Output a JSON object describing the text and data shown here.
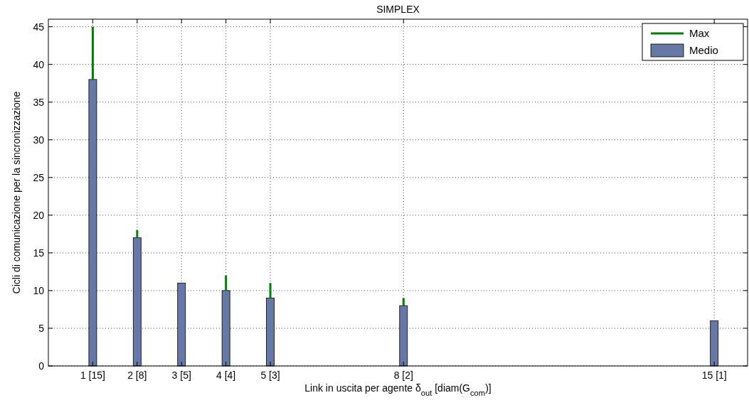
{
  "chart_data": {
    "type": "bar",
    "title": "SIMPLEX",
    "xlabel": "Link in uscita per agente δ$_{out}$  [diam(G$_{com}$)]",
    "ylabel": "Cicli di comunicazione per la sincronizzazione",
    "categories": [
      "1 [15]",
      "2 [8]",
      "3 [5]",
      "4 [4]",
      "5 [3]",
      null,
      null,
      "8 [2]",
      null,
      null,
      null,
      null,
      null,
      null,
      "15 [1]"
    ],
    "series": [
      {
        "name": "Max",
        "color": "#008000",
        "base": [
          38,
          17,
          null,
          10,
          9,
          null,
          null,
          8,
          null,
          null,
          null,
          null,
          null,
          null,
          null
        ],
        "values": [
          7,
          1,
          null,
          2,
          2,
          null,
          null,
          1,
          null,
          null,
          null,
          null,
          null,
          null,
          null
        ]
      },
      {
        "name": "Medio",
        "color": "#6578a6",
        "values": [
          38,
          17,
          11,
          10,
          9,
          null,
          null,
          8,
          null,
          null,
          null,
          null,
          null,
          null,
          6
        ]
      }
    ],
    "ylim": [
      0,
      46
    ],
    "yticks": [
      0,
      5,
      10,
      15,
      20,
      25,
      30,
      35,
      40,
      45
    ],
    "grid": true,
    "legend": "top right"
  }
}
